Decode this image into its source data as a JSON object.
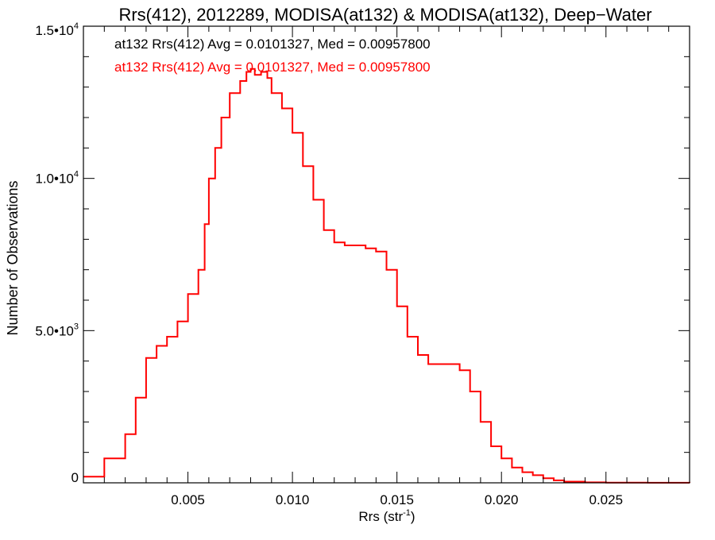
{
  "chart_data": {
    "type": "line",
    "title": "Rrs(412), 2012289, MODISA(at132) & MODISA(at132), Deep−Water",
    "xlabel_main": "Rrs (str",
    "xlabel_sup": "-1",
    "xlabel_end": ")",
    "ylabel": "Number of Observations",
    "xlim": [
      0.0,
      0.029
    ],
    "ylim": [
      0,
      15000
    ],
    "x_ticks": [
      {
        "value": 0.005,
        "label": "0.005"
      },
      {
        "value": 0.01,
        "label": "0.010"
      },
      {
        "value": 0.015,
        "label": "0.015"
      },
      {
        "value": 0.02,
        "label": "0.020"
      },
      {
        "value": 0.025,
        "label": "0.025"
      }
    ],
    "y_ticks": [
      {
        "value": 0,
        "mant": "0",
        "exp": ""
      },
      {
        "value": 5000,
        "mant": "5.0•10",
        "exp": "3"
      },
      {
        "value": 10000,
        "mant": "1.0•10",
        "exp": "4"
      },
      {
        "value": 15000,
        "mant": "1.5•10",
        "exp": "4"
      }
    ],
    "annotations": [
      {
        "text": "at132 Rrs(412) Avg = 0.0101327, Med = 0.00957800",
        "color": "#000000"
      },
      {
        "text": "at132 Rrs(412) Avg = 0.0101327, Med = 0.00957800",
        "color": "#ff0000"
      }
    ],
    "series": [
      {
        "color": "#ff0000",
        "step": "histogram",
        "x": [
          0.0,
          0.001,
          0.002,
          0.0025,
          0.003,
          0.0035,
          0.004,
          0.0045,
          0.005,
          0.0055,
          0.0058,
          0.006,
          0.0063,
          0.0066,
          0.007,
          0.0075,
          0.0078,
          0.008,
          0.0082,
          0.0085,
          0.0088,
          0.009,
          0.0095,
          0.01,
          0.0105,
          0.011,
          0.0115,
          0.012,
          0.0125,
          0.013,
          0.0135,
          0.014,
          0.0145,
          0.015,
          0.0155,
          0.016,
          0.0165,
          0.017,
          0.0175,
          0.018,
          0.0185,
          0.019,
          0.0195,
          0.02,
          0.0205,
          0.021,
          0.0215,
          0.022,
          0.0225,
          0.023,
          0.024,
          0.025,
          0.026,
          0.027,
          0.029
        ],
        "y": [
          200,
          800,
          1600,
          2800,
          4100,
          4500,
          4800,
          5300,
          6200,
          7000,
          8500,
          10000,
          11000,
          12000,
          12800,
          13200,
          13500,
          13600,
          13400,
          13500,
          13300,
          12800,
          12300,
          11500,
          10400,
          9300,
          8300,
          7900,
          7800,
          7800,
          7700,
          7600,
          7000,
          5800,
          4800,
          4200,
          3900,
          3900,
          3900,
          3700,
          3000,
          2000,
          1200,
          800,
          500,
          350,
          250,
          150,
          80,
          40,
          15,
          8,
          4,
          2,
          0
        ]
      }
    ]
  }
}
